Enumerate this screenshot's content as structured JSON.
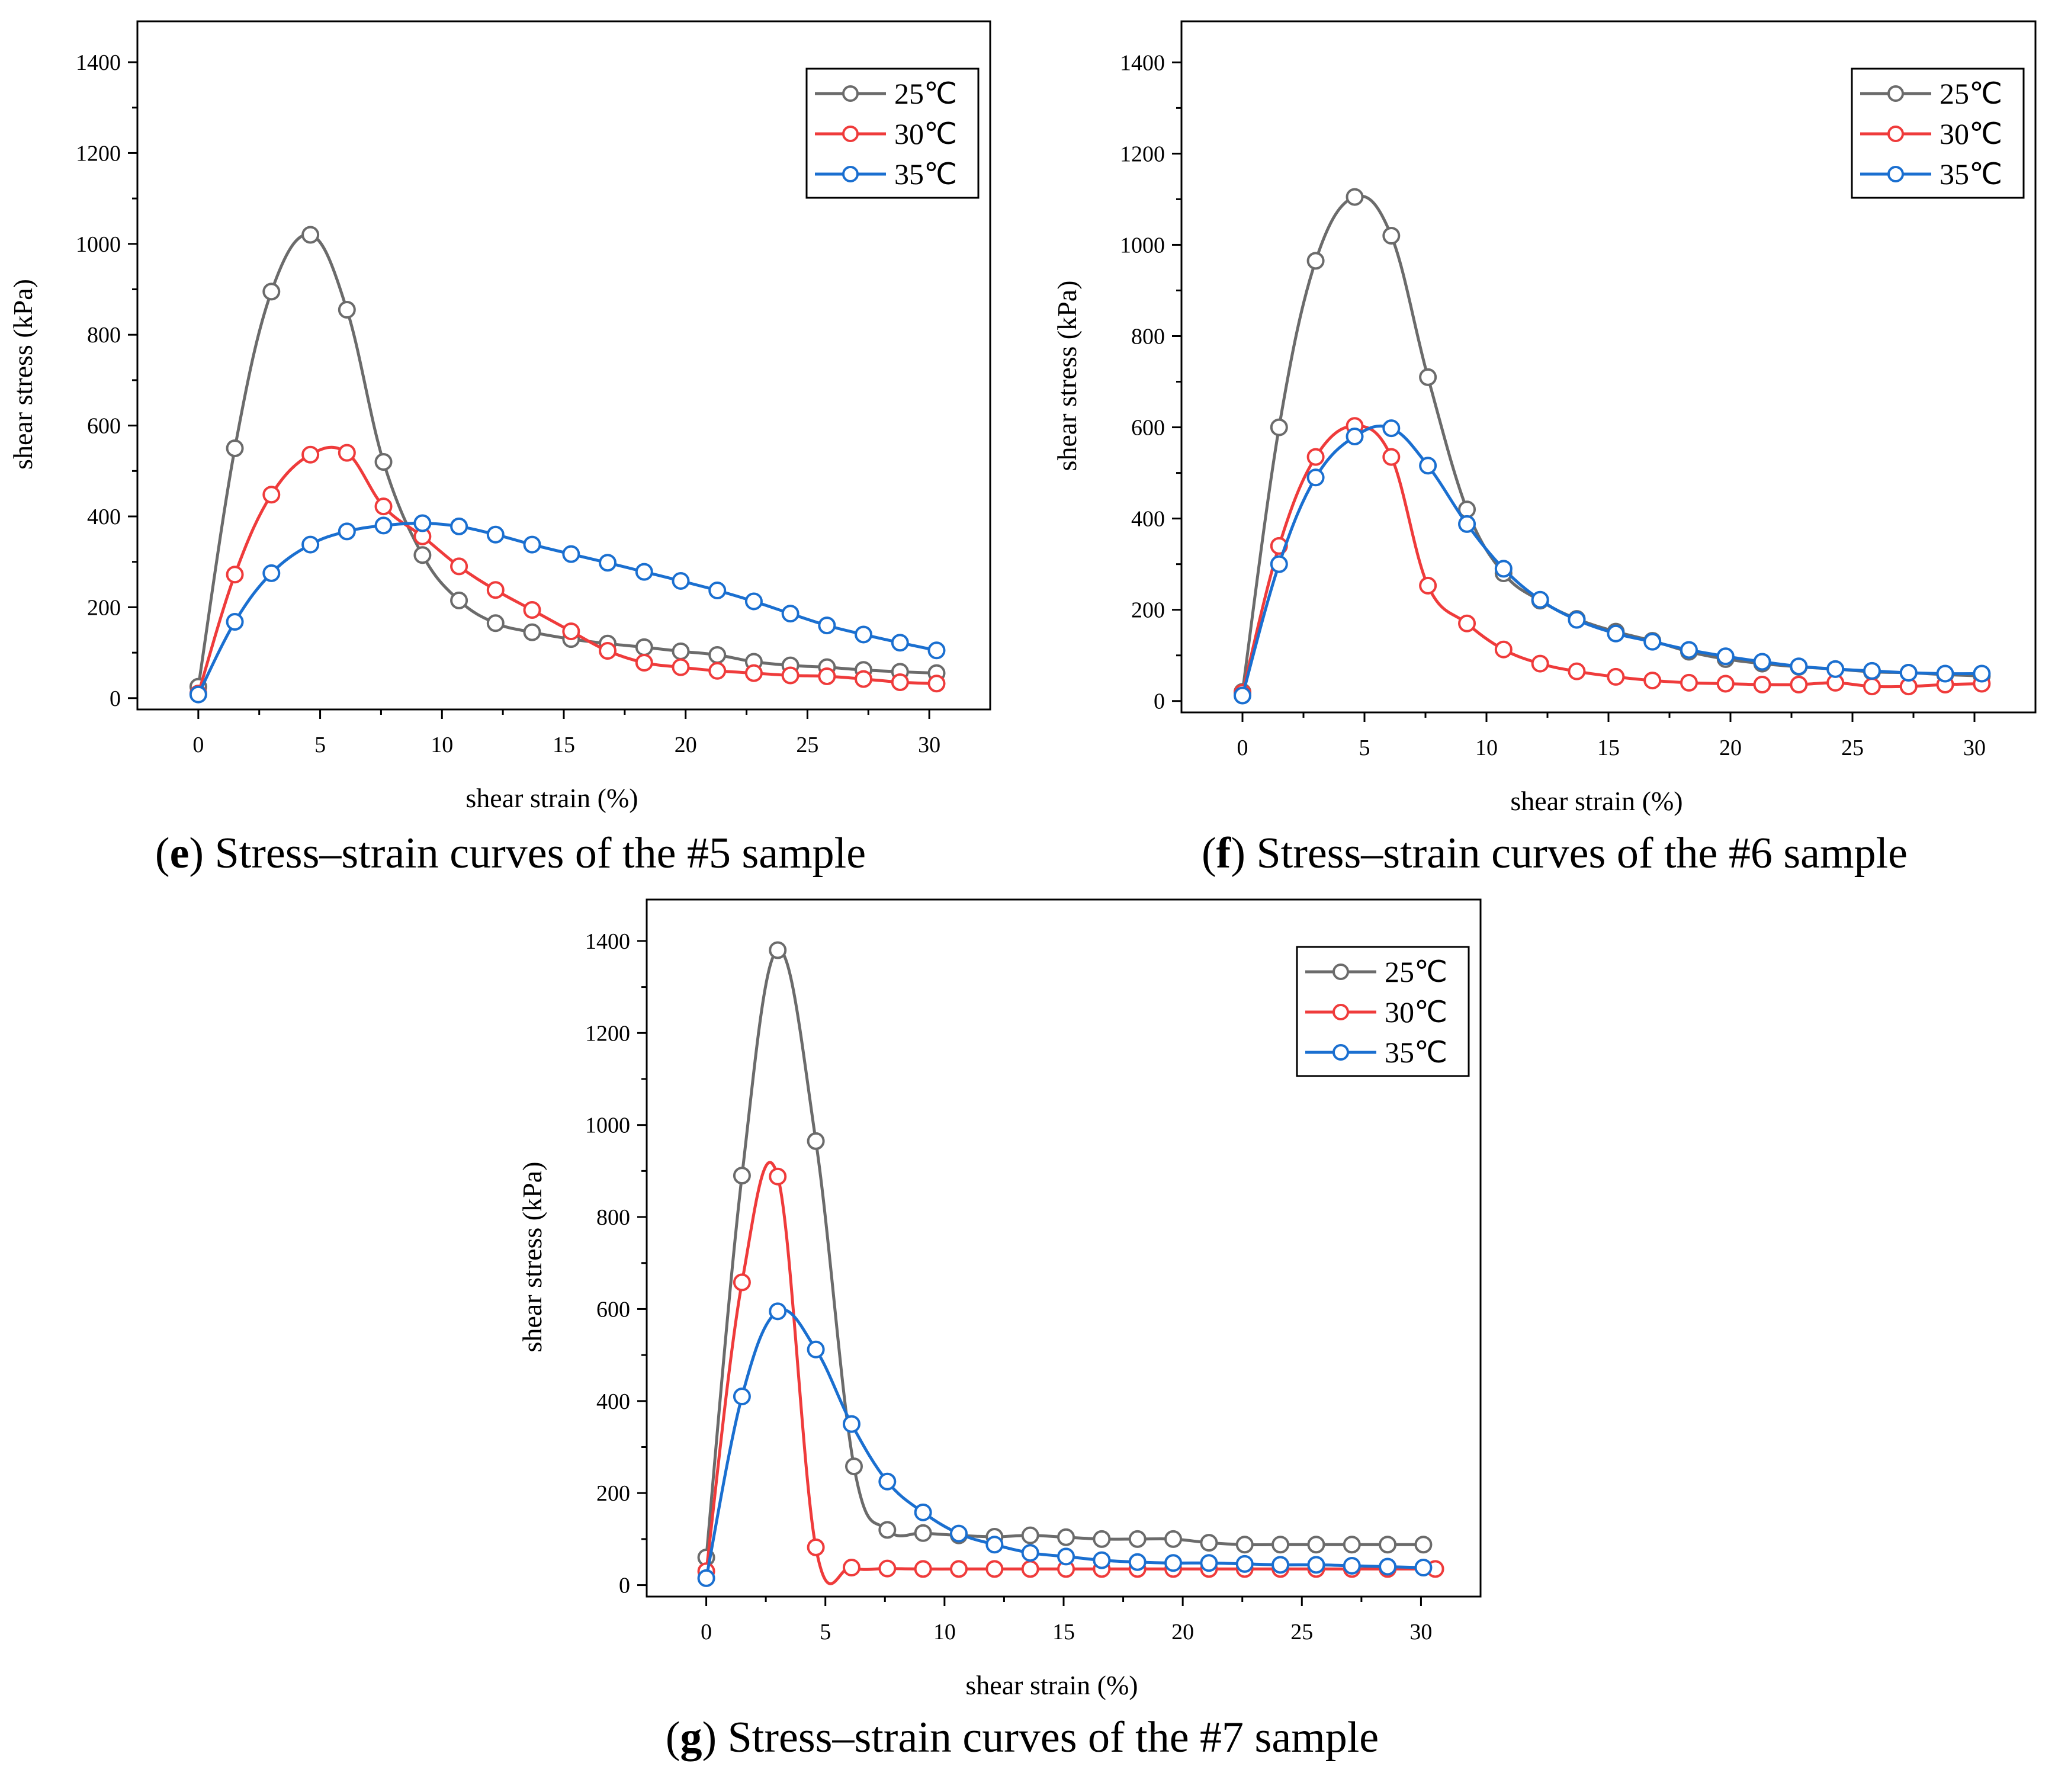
{
  "colors": {
    "25C": "#6b6b6b",
    "30C": "#ef3b3b",
    "35C": "#1a6fd0"
  },
  "chart_data": [
    {
      "type": "line",
      "id": "e",
      "caption_letter": "e",
      "caption_text": " Stress–strain curves of the #5 sample",
      "xlabel": "shear strain (%)",
      "ylabel": "shear stress (kPa)",
      "xlim": [
        -2.5,
        32.5
      ],
      "ylim": [
        -25,
        1490
      ],
      "xticks": [
        0,
        5,
        10,
        15,
        20,
        25,
        30
      ],
      "yticks": [
        0,
        200,
        400,
        600,
        800,
        1000,
        1200,
        1400
      ],
      "legend_position": "top-right",
      "series": [
        {
          "name": "25℃",
          "color_key": "25C",
          "x": [
            0,
            1.5,
            3,
            4.6,
            6.1,
            7.6,
            9.2,
            10.7,
            12.2,
            13.7,
            15.3,
            16.8,
            18.3,
            19.8,
            21.3,
            22.8,
            24.3,
            25.8,
            27.3,
            28.8,
            30.3
          ],
          "y": [
            25,
            550,
            895,
            1020,
            855,
            520,
            315,
            215,
            165,
            145,
            130,
            120,
            112,
            103,
            95,
            80,
            72,
            68,
            62,
            58,
            55
          ]
        },
        {
          "name": "30℃",
          "color_key": "30C",
          "x": [
            0,
            1.5,
            3,
            4.6,
            6.1,
            7.6,
            9.2,
            10.7,
            12.2,
            13.7,
            15.3,
            16.8,
            18.3,
            19.8,
            21.3,
            22.8,
            24.3,
            25.8,
            27.3,
            28.8,
            30.3
          ],
          "y": [
            10,
            272,
            448,
            536,
            540,
            422,
            356,
            290,
            238,
            194,
            147,
            104,
            78,
            68,
            60,
            55,
            50,
            48,
            42,
            35,
            32
          ]
        },
        {
          "name": "35℃",
          "color_key": "35C",
          "x": [
            0,
            1.5,
            3,
            4.6,
            6.1,
            7.6,
            9.2,
            10.7,
            12.2,
            13.7,
            15.3,
            16.8,
            18.3,
            19.8,
            21.3,
            22.8,
            24.3,
            25.8,
            27.3,
            28.8,
            30.3
          ],
          "y": [
            8,
            168,
            275,
            338,
            367,
            380,
            385,
            378,
            360,
            338,
            317,
            298,
            278,
            258,
            237,
            213,
            186,
            160,
            140,
            122,
            105
          ]
        }
      ]
    },
    {
      "type": "line",
      "id": "f",
      "caption_letter": "f",
      "caption_text": " Stress–strain curves of the #6 sample",
      "xlabel": "shear strain (%)",
      "ylabel": "shear stress (kPa)",
      "xlim": [
        -2.5,
        32.5
      ],
      "ylim": [
        -25,
        1490
      ],
      "xticks": [
        0,
        5,
        10,
        15,
        20,
        25,
        30
      ],
      "yticks": [
        0,
        200,
        400,
        600,
        800,
        1000,
        1200,
        1400
      ],
      "legend_position": "top-right",
      "series": [
        {
          "name": "25℃",
          "color_key": "25C",
          "x": [
            0,
            1.5,
            3,
            4.6,
            6.1,
            7.6,
            9.2,
            10.7,
            12.2,
            13.7,
            15.3,
            16.8,
            18.3,
            19.8,
            21.3,
            22.8,
            24.3,
            25.8,
            27.3,
            28.8,
            30.3
          ],
          "y": [
            20,
            600,
            965,
            1105,
            1020,
            710,
            420,
            280,
            220,
            180,
            152,
            132,
            108,
            92,
            82,
            75,
            70,
            64,
            62,
            58,
            55
          ]
        },
        {
          "name": "30℃",
          "color_key": "30C",
          "x": [
            0,
            1.5,
            3,
            4.6,
            6.1,
            7.6,
            9.2,
            10.7,
            12.2,
            13.7,
            15.3,
            16.8,
            18.3,
            19.8,
            21.3,
            22.8,
            24.3,
            25.8,
            27.3,
            28.8,
            30.3
          ],
          "y": [
            18,
            340,
            535,
            603,
            535,
            253,
            170,
            113,
            82,
            65,
            53,
            45,
            40,
            38,
            36,
            36,
            40,
            32,
            32,
            36,
            38
          ]
        },
        {
          "name": "35℃",
          "color_key": "35C",
          "x": [
            0,
            1.5,
            3,
            4.6,
            6.1,
            7.6,
            9.2,
            10.7,
            12.2,
            13.7,
            15.3,
            16.8,
            18.3,
            19.8,
            21.3,
            22.8,
            24.3,
            25.8,
            27.3,
            28.8,
            30.3
          ],
          "y": [
            12,
            300,
            490,
            580,
            598,
            516,
            388,
            290,
            222,
            178,
            148,
            130,
            112,
            98,
            86,
            76,
            70,
            66,
            62,
            60,
            60
          ]
        }
      ]
    },
    {
      "type": "line",
      "id": "g",
      "caption_letter": "g",
      "caption_text": " Stress–strain curves of the #7 sample",
      "xlabel": "shear strain (%)",
      "ylabel": "shear stress (kPa)",
      "xlim": [
        -2.5,
        32.5
      ],
      "ylim": [
        -25,
        1490
      ],
      "xticks": [
        0,
        5,
        10,
        15,
        20,
        25,
        30
      ],
      "yticks": [
        0,
        200,
        400,
        600,
        800,
        1000,
        1200,
        1400
      ],
      "legend_position": "top-right",
      "series": [
        {
          "name": "25℃",
          "color_key": "25C",
          "x": [
            0,
            1.5,
            3,
            4.6,
            6.2,
            7.6,
            9.1,
            10.6,
            12.1,
            13.6,
            15.1,
            16.6,
            18.1,
            19.6,
            21.1,
            22.6,
            24.1,
            25.6,
            27.1,
            28.6,
            30.1
          ],
          "y": [
            60,
            890,
            1380,
            965,
            258,
            120,
            113,
            108,
            105,
            108,
            104,
            100,
            100,
            100,
            92,
            88,
            88,
            88,
            88,
            88,
            88
          ]
        },
        {
          "name": "30℃",
          "color_key": "30C",
          "x": [
            0,
            1.5,
            3,
            4.6,
            6.1,
            7.6,
            9.1,
            10.6,
            12.1,
            13.6,
            15.1,
            16.6,
            18.1,
            19.6,
            21.1,
            22.6,
            24.1,
            25.6,
            27.1,
            28.6,
            30.6
          ],
          "y": [
            30,
            658,
            888,
            82,
            38,
            36,
            35,
            35,
            35,
            35,
            35,
            35,
            35,
            35,
            35,
            35,
            35,
            35,
            35,
            35,
            35
          ]
        },
        {
          "name": "35℃",
          "color_key": "35C",
          "x": [
            0,
            1.5,
            3,
            4.6,
            6.1,
            7.6,
            9.1,
            10.6,
            12.1,
            13.6,
            15.1,
            16.6,
            18.1,
            19.6,
            21.1,
            22.6,
            24.1,
            25.6,
            27.1,
            28.6,
            30.1
          ],
          "y": [
            15,
            410,
            595,
            512,
            350,
            225,
            158,
            112,
            88,
            70,
            62,
            54,
            50,
            48,
            48,
            46,
            44,
            44,
            42,
            40,
            38
          ]
        }
      ]
    }
  ]
}
